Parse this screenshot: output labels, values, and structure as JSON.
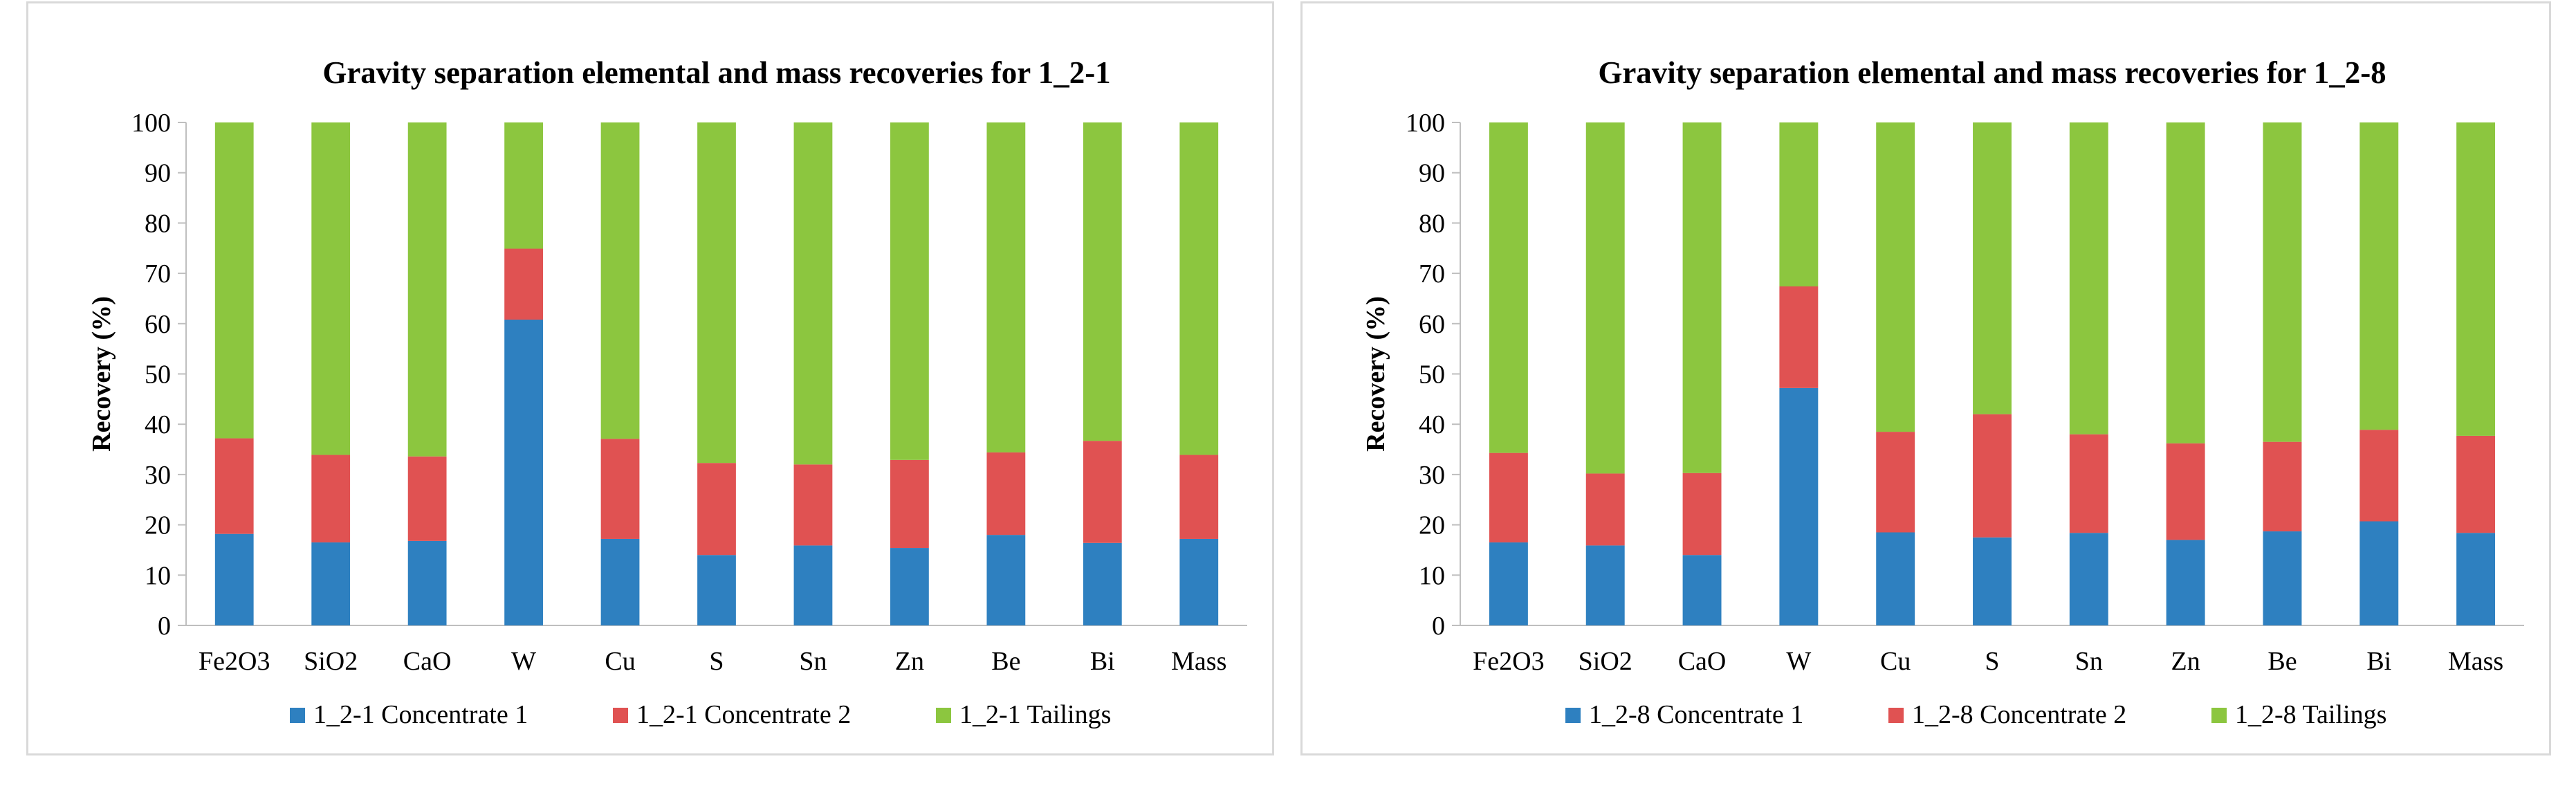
{
  "chart_data": [
    {
      "type": "bar",
      "stacked": true,
      "title": "Gravity separation elemental and mass recoveries for 1_2-1",
      "xlabel": "",
      "ylabel": "Recovery (%)",
      "ylim": [
        0,
        100
      ],
      "yticks": [
        "0",
        "10",
        "20",
        "30",
        "40",
        "50",
        "60",
        "70",
        "80",
        "90",
        "100"
      ],
      "grid": false,
      "legend_position": "bottom",
      "categories": [
        "Fe2O3",
        "SiO2",
        "CaO",
        "W",
        "Cu",
        "S",
        "Sn",
        "Zn",
        "Be",
        "Bi",
        "Mass"
      ],
      "series": [
        {
          "name": "1_2-1 Concentrate 1",
          "color": "#2e80c0",
          "values": [
            18.2,
            16.5,
            16.8,
            60.8,
            17.2,
            14.0,
            15.9,
            15.4,
            18.0,
            16.4,
            17.2
          ]
        },
        {
          "name": "1_2-1 Concentrate 2",
          "color": "#e05252",
          "values": [
            19.0,
            17.4,
            16.8,
            14.1,
            19.9,
            18.3,
            16.1,
            17.5,
            16.4,
            20.3,
            16.7
          ]
        },
        {
          "name": "1_2-1 Tailings",
          "color": "#8cc63f",
          "values": [
            62.8,
            66.1,
            66.4,
            25.1,
            62.9,
            67.7,
            68.0,
            67.1,
            65.6,
            63.3,
            66.1
          ]
        }
      ]
    },
    {
      "type": "bar",
      "stacked": true,
      "title": "Gravity separation elemental and mass recoveries for 1_2-8",
      "xlabel": "",
      "ylabel": "Recovery (%)",
      "ylim": [
        0,
        100
      ],
      "yticks": [
        "0",
        "10",
        "20",
        "30",
        "40",
        "50",
        "60",
        "70",
        "80",
        "90",
        "100"
      ],
      "grid": false,
      "legend_position": "bottom",
      "categories": [
        "Fe2O3",
        "SiO2",
        "CaO",
        "W",
        "Cu",
        "S",
        "Sn",
        "Zn",
        "Be",
        "Bi",
        "Mass"
      ],
      "series": [
        {
          "name": "1_2-8 Concentrate 1",
          "color": "#2e80c0",
          "values": [
            16.5,
            15.9,
            14.0,
            47.2,
            18.5,
            17.5,
            18.4,
            17.0,
            18.7,
            20.7,
            18.4
          ]
        },
        {
          "name": "1_2-8 Concentrate 2",
          "color": "#e05252",
          "values": [
            17.8,
            14.3,
            16.3,
            20.2,
            20.0,
            24.5,
            19.6,
            19.2,
            17.8,
            18.2,
            19.3
          ]
        },
        {
          "name": "1_2-8 Tailings",
          "color": "#8cc63f",
          "values": [
            65.7,
            69.8,
            69.7,
            32.6,
            61.5,
            58.0,
            62.0,
            63.8,
            63.5,
            61.1,
            62.3
          ]
        }
      ]
    }
  ]
}
